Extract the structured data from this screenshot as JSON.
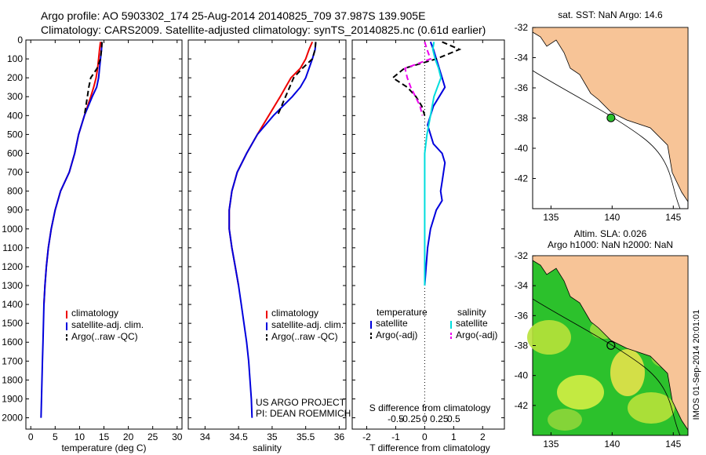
{
  "header": {
    "line1": "Argo profile: AO 5903302_174 25-Aug-2014 20140825_709 37.987S 139.905E",
    "line2": "Climatology: CARS2009. Satellite-adjusted climatology: synTS_20140825.nc (0.61d earlier)"
  },
  "colors": {
    "climatology": "#ee0000",
    "satellite": "#0000dd",
    "argo": "#000000",
    "salinity_satellite": "#00dddd",
    "salinity_argo": "#ee00ee",
    "land": "#f7c497",
    "sea_green": "#2cc12c"
  },
  "chart_data": [
    {
      "type": "line",
      "id": "temperature",
      "xlabel": "temperature (deg C)",
      "xlim": [
        -1,
        31
      ],
      "xticks": [
        0,
        5,
        10,
        15,
        20,
        25,
        30
      ],
      "ylim": [
        0,
        2060
      ],
      "yticks": [
        0,
        100,
        200,
        300,
        400,
        500,
        600,
        700,
        800,
        900,
        1000,
        1100,
        1200,
        1300,
        1400,
        1500,
        1600,
        1700,
        1800,
        1900,
        2000
      ],
      "legend": [
        "climatology",
        "satellite-adj. clim.",
        "Argo(..raw -QC)"
      ],
      "series": [
        {
          "name": "climatology",
          "depth": [
            10,
            50,
            100,
            150,
            200,
            250,
            300,
            400,
            500,
            600,
            700,
            800,
            900,
            1000,
            1100,
            1200,
            1300,
            1400
          ],
          "values": [
            14.3,
            14.1,
            13.9,
            13.7,
            13.4,
            12.9,
            12.3,
            11.0,
            9.8,
            9.0,
            7.9,
            6.1,
            5.0,
            4.2,
            3.6,
            3.2,
            2.9,
            2.7
          ]
        },
        {
          "name": "satellite-adj. clim.",
          "depth": [
            10,
            50,
            100,
            150,
            200,
            250,
            300,
            400,
            500,
            600,
            700,
            800,
            900,
            1000,
            1100,
            1200,
            1300,
            1400,
            1500,
            1600,
            1700,
            1800,
            1900,
            2000
          ],
          "values": [
            14.6,
            14.5,
            14.3,
            14.1,
            13.9,
            13.5,
            12.6,
            11.0,
            9.8,
            9.0,
            7.9,
            6.1,
            5.0,
            4.2,
            3.6,
            3.2,
            2.9,
            2.7,
            2.6,
            2.5,
            2.4,
            2.3,
            2.2,
            2.1
          ]
        },
        {
          "name": "Argo(..raw -QC)",
          "depth": [
            10,
            50,
            100,
            150,
            200,
            250,
            300,
            400
          ],
          "values": [
            14.6,
            14.5,
            14.3,
            13.6,
            12.3,
            11.9,
            11.6,
            11.0
          ]
        }
      ]
    },
    {
      "type": "line",
      "id": "salinity",
      "xlabel": "salinity",
      "xlim": [
        33.75,
        36.1
      ],
      "xticks": [
        34,
        34.5,
        35,
        35.5,
        36
      ],
      "ylim": [
        0,
        2060
      ],
      "legend": [
        "climatology",
        "satellite-adj. clim.",
        "Argo(..raw -QC)"
      ],
      "series": [
        {
          "name": "climatology",
          "depth": [
            10,
            50,
            100,
            150,
            200,
            250,
            300,
            400,
            500,
            600,
            700,
            800,
            900,
            1000,
            1100,
            1200,
            1300
          ],
          "values": [
            35.6,
            35.55,
            35.5,
            35.42,
            35.28,
            35.2,
            35.12,
            34.95,
            34.78,
            34.62,
            34.48,
            34.4,
            34.36,
            34.36,
            34.4,
            34.45,
            34.5
          ]
        },
        {
          "name": "satellite-adj. clim.",
          "depth": [
            10,
            50,
            100,
            150,
            200,
            250,
            300,
            400,
            500,
            600,
            700,
            800,
            900,
            1000,
            1100,
            1200,
            1300,
            1400,
            1500,
            1600,
            1700,
            1800,
            1900,
            2000
          ],
          "values": [
            35.65,
            35.64,
            35.6,
            35.55,
            35.5,
            35.42,
            35.3,
            35.02,
            34.78,
            34.62,
            34.48,
            34.4,
            34.36,
            34.36,
            34.4,
            34.45,
            34.5,
            34.54,
            34.58,
            34.62,
            34.65,
            34.67,
            34.69,
            34.7
          ]
        },
        {
          "name": "Argo(..raw -QC)",
          "depth": [
            10,
            50,
            100,
            150,
            200,
            250,
            300,
            400
          ],
          "values": [
            35.65,
            35.64,
            35.6,
            35.45,
            35.32,
            35.26,
            35.2,
            35.08
          ]
        }
      ],
      "annotation": [
        "US ARGO PROJECT",
        "PI: DEAN ROEMMICH"
      ]
    },
    {
      "type": "line",
      "id": "difference",
      "xlabel": "T difference from climatology",
      "x2label": "S difference from climatology",
      "xlim": [
        -2.5,
        2.75
      ],
      "xticks": [
        -2,
        -1,
        0,
        1,
        2
      ],
      "x2ticks": [
        "-0.5",
        "-0.25",
        "0",
        "0.25",
        "0.5"
      ],
      "legend": {
        "temperature_heading": "temperature",
        "salinity_heading": "salinity",
        "entries": [
          "satellite",
          "Argo(-adj)",
          "satellite",
          "Argo(-adj)"
        ]
      },
      "series": [
        {
          "name": "temperature satellite",
          "depth": [
            10,
            50,
            100,
            150,
            200,
            250,
            300,
            350,
            400,
            450,
            500,
            550,
            600,
            650,
            700,
            750,
            800,
            850,
            900,
            1000,
            1100,
            1200,
            1300
          ],
          "values": [
            0.2,
            0.3,
            0.4,
            0.5,
            0.6,
            0.7,
            0.5,
            0.3,
            0.2,
            0.1,
            0.2,
            0.3,
            0.6,
            0.7,
            0.65,
            0.6,
            0.55,
            0.6,
            0.4,
            0.2,
            0.1,
            0.05,
            0.0
          ]
        },
        {
          "name": "temperature Argo(-adj)",
          "depth": [
            10,
            50,
            100,
            150,
            200,
            250,
            300,
            350,
            400
          ],
          "values": [
            0.6,
            1.2,
            0.4,
            -0.7,
            -1.1,
            -0.6,
            -0.3,
            -0.1,
            0.0
          ]
        },
        {
          "name": "salinity satellite",
          "depth": [
            10,
            50,
            100,
            150,
            200,
            250,
            300,
            400,
            500,
            600,
            700,
            800,
            900,
            1000,
            1100,
            1200,
            1300
          ],
          "values": [
            0.08,
            0.07,
            0.09,
            0.12,
            0.14,
            0.11,
            0.08,
            0.05,
            0.02,
            0.0,
            0.0,
            0.0,
            0.0,
            0.0,
            0.0,
            0.0,
            0.0
          ]
        },
        {
          "name": "salinity Argo(-adj)",
          "depth": [
            10,
            50,
            100,
            150,
            200,
            250,
            300,
            350,
            400
          ],
          "values": [
            0.0,
            0.02,
            0.05,
            -0.17,
            -0.15,
            -0.12,
            -0.08,
            -0.04,
            -0.02
          ]
        }
      ]
    },
    {
      "type": "map",
      "id": "sst_map",
      "title": "sat. SST: NaN Argo: 14.6",
      "xticks": [
        135,
        140,
        145
      ],
      "yticks": [
        -32,
        -34,
        -36,
        -38,
        -40,
        -42
      ],
      "xlim": [
        133.5,
        146.2
      ],
      "ylim": [
        -44,
        -32
      ],
      "argo_position": [
        139.905,
        -37.987
      ]
    },
    {
      "type": "map",
      "id": "sla_map",
      "title_line1": "Altim. SLA: 0.026",
      "title_line2": "Argo h1000: NaN h2000: NaN",
      "xticks": [
        135,
        140,
        145
      ],
      "yticks": [
        -32,
        -34,
        -36,
        -38,
        -40,
        -42
      ],
      "xlim": [
        133.5,
        146.2
      ],
      "ylim": [
        -44,
        -32
      ],
      "argo_position": [
        139.905,
        -37.987
      ],
      "side_label": "IMOS 01-Sep-2014 20:01:01"
    }
  ]
}
